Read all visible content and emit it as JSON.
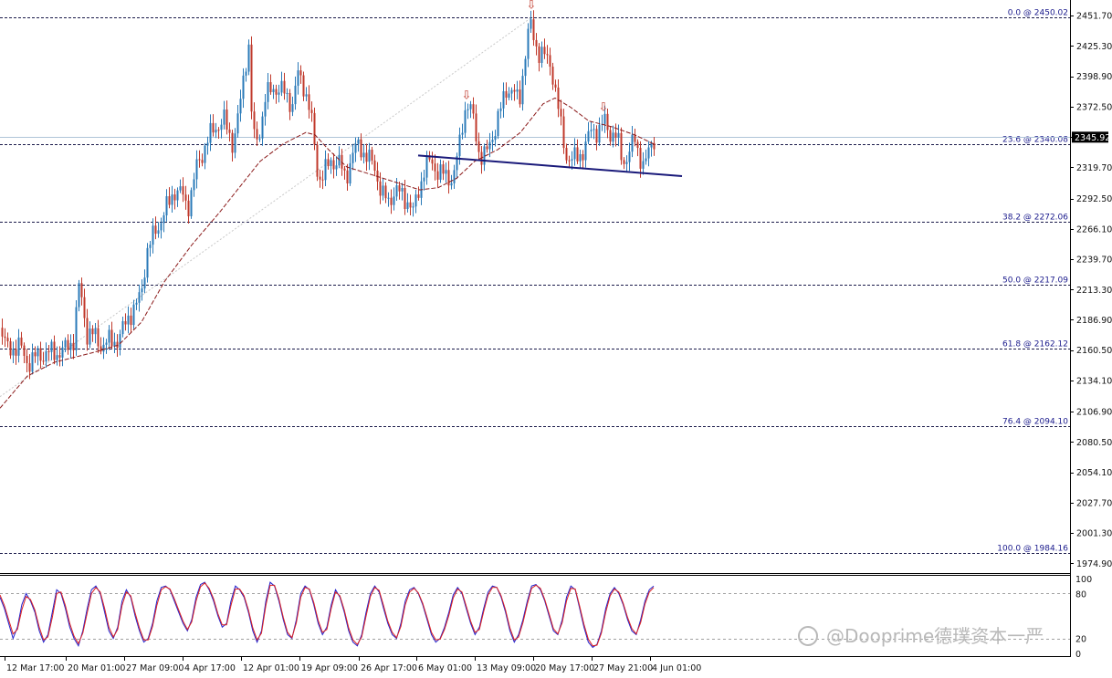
{
  "colors": {
    "up_candle": "#2a7ab8",
    "down_candle": "#c0392b",
    "moving_average": "#8b1a1a",
    "neckline": "#1a1a7a",
    "fib_line": "#1a1a4a",
    "stoch_main": "#2222cc",
    "stoch_signal": "#dd2222",
    "arrow_marker": "#c0392b",
    "current_price_bg": "#000000"
  },
  "chart_data": [
    {
      "type": "candlestick",
      "title": "",
      "y_ticks": [
        "2451.70",
        "2425.30",
        "2398.90",
        "2372.50",
        "2345.92",
        "2319.70",
        "2292.50",
        "2266.10",
        "2239.70",
        "2213.30",
        "2186.90",
        "2160.50",
        "2134.10",
        "2106.90",
        "2080.50",
        "2054.10",
        "2027.70",
        "2001.30",
        "1974.90"
      ],
      "ylim": [
        1968,
        2459
      ],
      "x_ticks": [
        "12 Mar 17:00",
        "20 Mar 01:00",
        "27 Mar 09:00",
        "4 Apr 17:00",
        "12 Apr 01:00",
        "19 Apr 09:00",
        "26 Apr 17:00",
        "6 May 01:00",
        "13 May 09:00",
        "20 May 17:00",
        "27 May 21:00",
        "4 Jun 01:00"
      ],
      "current_price": "2345.92",
      "fibonacci_levels": [
        {
          "label": "0.0 @ 2450.02",
          "price": 2450.02
        },
        {
          "label": "23.6 @ 2340.08",
          "price": 2340.08
        },
        {
          "label": "38.2 @ 2272.06",
          "price": 2272.06
        },
        {
          "label": "50.0 @ 2217.09",
          "price": 2217.09
        },
        {
          "label": "61.8 @ 2162.12",
          "price": 2162.12
        },
        {
          "label": "76.4 @ 2094.10",
          "price": 2094.1
        },
        {
          "label": "100.0 @ 1984.16",
          "price": 1984.16
        }
      ],
      "close_anchors": [
        [
          0,
          2180
        ],
        [
          8,
          2160
        ],
        [
          20,
          2165
        ],
        [
          26,
          2155
        ],
        [
          30,
          2150
        ],
        [
          40,
          2155
        ],
        [
          50,
          2158
        ],
        [
          60,
          2158
        ],
        [
          70,
          2160
        ],
        [
          80,
          2170
        ],
        [
          86,
          2215
        ],
        [
          90,
          2200
        ],
        [
          95,
          2175
        ],
        [
          100,
          2175
        ],
        [
          110,
          2165
        ],
        [
          120,
          2168
        ],
        [
          130,
          2170
        ],
        [
          140,
          2190
        ],
        [
          150,
          2200
        ],
        [
          155,
          2215
        ],
        [
          160,
          2245
        ],
        [
          170,
          2265
        ],
        [
          180,
          2280
        ],
        [
          190,
          2300
        ],
        [
          200,
          2295
        ],
        [
          205,
          2285
        ],
        [
          210,
          2300
        ],
        [
          215,
          2320
        ],
        [
          225,
          2340
        ],
        [
          235,
          2355
        ],
        [
          245,
          2360
        ],
        [
          255,
          2340
        ],
        [
          262,
          2370
        ],
        [
          268,
          2410
        ],
        [
          272,
          2425
        ],
        [
          276,
          2350
        ],
        [
          280,
          2340
        ],
        [
          285,
          2355
        ],
        [
          290,
          2380
        ],
        [
          300,
          2390
        ],
        [
          310,
          2385
        ],
        [
          320,
          2375
        ],
        [
          326,
          2400
        ],
        [
          333,
          2390
        ],
        [
          340,
          2365
        ],
        [
          348,
          2310
        ],
        [
          355,
          2315
        ],
        [
          362,
          2325
        ],
        [
          370,
          2325
        ],
        [
          378,
          2310
        ],
        [
          385,
          2330
        ],
        [
          393,
          2340
        ],
        [
          400,
          2330
        ],
        [
          410,
          2320
        ],
        [
          418,
          2295
        ],
        [
          425,
          2290
        ],
        [
          432,
          2300
        ],
        [
          440,
          2295
        ],
        [
          447,
          2290
        ],
        [
          452,
          2280
        ],
        [
          458,
          2300
        ],
        [
          465,
          2320
        ],
        [
          472,
          2325
        ],
        [
          480,
          2315
        ],
        [
          488,
          2312
        ],
        [
          496,
          2310
        ],
        [
          503,
          2340
        ],
        [
          508,
          2370
        ],
        [
          513,
          2375
        ],
        [
          518,
          2360
        ],
        [
          525,
          2330
        ],
        [
          532,
          2330
        ],
        [
          540,
          2350
        ],
        [
          548,
          2370
        ],
        [
          555,
          2390
        ],
        [
          562,
          2385
        ],
        [
          568,
          2375
        ],
        [
          575,
          2420
        ],
        [
          580,
          2445
        ],
        [
          585,
          2430
        ],
        [
          590,
          2420
        ],
        [
          597,
          2415
        ],
        [
          603,
          2410
        ],
        [
          608,
          2385
        ],
        [
          614,
          2355
        ],
        [
          620,
          2330
        ],
        [
          626,
          2325
        ],
        [
          632,
          2330
        ],
        [
          640,
          2335
        ],
        [
          648,
          2355
        ],
        [
          655,
          2350
        ],
        [
          662,
          2360
        ],
        [
          668,
          2350
        ],
        [
          675,
          2345
        ],
        [
          682,
          2325
        ],
        [
          688,
          2330
        ],
        [
          695,
          2345
        ],
        [
          702,
          2325
        ],
        [
          706,
          2318
        ],
        [
          710,
          2335
        ],
        [
          716,
          2346
        ]
      ],
      "moving_average_anchors": [
        [
          0,
          2110
        ],
        [
          30,
          2138
        ],
        [
          60,
          2150
        ],
        [
          100,
          2158
        ],
        [
          130,
          2165
        ],
        [
          155,
          2185
        ],
        [
          180,
          2220
        ],
        [
          210,
          2252
        ],
        [
          240,
          2280
        ],
        [
          265,
          2305
        ],
        [
          285,
          2325
        ],
        [
          310,
          2340
        ],
        [
          335,
          2350
        ],
        [
          345,
          2348
        ],
        [
          360,
          2335
        ],
        [
          380,
          2320
        ],
        [
          400,
          2315
        ],
        [
          420,
          2310
        ],
        [
          440,
          2305
        ],
        [
          460,
          2300
        ],
        [
          480,
          2302
        ],
        [
          500,
          2310
        ],
        [
          520,
          2325
        ],
        [
          545,
          2335
        ],
        [
          570,
          2350
        ],
        [
          595,
          2375
        ],
        [
          608,
          2380
        ],
        [
          625,
          2372
        ],
        [
          645,
          2360
        ],
        [
          670,
          2355
        ],
        [
          695,
          2348
        ],
        [
          716,
          2340
        ]
      ],
      "neckline": {
        "start": [
          458,
          2330
        ],
        "end": [
          747,
          2312
        ]
      },
      "markers": [
        {
          "symbol": "⇩",
          "x": 511,
          "price": 2379
        },
        {
          "symbol": "⇩",
          "x": 582,
          "price": 2458
        },
        {
          "symbol": "⇩",
          "x": 661,
          "price": 2369
        }
      ]
    },
    {
      "type": "stochastic_oscillator",
      "y_ticks": [
        "100",
        "80",
        "20",
        "0"
      ],
      "ylim": [
        0,
        100
      ],
      "levels": [
        80,
        20
      ],
      "series": [
        {
          "role": "main",
          "values": [
            75,
            60,
            40,
            20,
            35,
            65,
            80,
            70,
            55,
            30,
            15,
            25,
            55,
            85,
            80,
            60,
            35,
            20,
            10,
            30,
            60,
            85,
            90,
            80,
            55,
            30,
            20,
            35,
            70,
            85,
            75,
            50,
            30,
            15,
            20,
            40,
            70,
            88,
            90,
            85,
            70,
            55,
            40,
            30,
            45,
            75,
            92,
            95,
            85,
            70,
            50,
            35,
            40,
            70,
            90,
            85,
            75,
            55,
            30,
            15,
            30,
            70,
            95,
            90,
            70,
            45,
            25,
            20,
            45,
            80,
            90,
            85,
            65,
            40,
            25,
            35,
            65,
            85,
            75,
            55,
            30,
            15,
            10,
            25,
            55,
            80,
            90,
            82,
            60,
            40,
            25,
            20,
            40,
            70,
            85,
            88,
            80,
            65,
            45,
            25,
            15,
            20,
            35,
            55,
            78,
            88,
            80,
            60,
            40,
            25,
            35,
            60,
            82,
            90,
            88,
            75,
            55,
            30,
            15,
            25,
            45,
            70,
            90,
            92,
            85,
            70,
            50,
            30,
            25,
            45,
            75,
            90,
            85,
            60,
            35,
            15,
            8,
            12,
            30,
            60,
            80,
            88,
            80,
            65,
            45,
            30,
            25,
            45,
            70,
            85,
            90
          ]
        },
        {
          "role": "signal",
          "values": [
            78,
            64,
            45,
            26,
            32,
            58,
            76,
            72,
            58,
            35,
            18,
            22,
            48,
            80,
            82,
            64,
            40,
            23,
            13,
            27,
            54,
            80,
            88,
            82,
            60,
            35,
            22,
            32,
            64,
            82,
            77,
            54,
            34,
            18,
            18,
            36,
            64,
            85,
            89,
            86,
            73,
            58,
            43,
            32,
            42,
            70,
            89,
            94,
            87,
            73,
            53,
            38,
            38,
            64,
            86,
            86,
            77,
            58,
            34,
            18,
            27,
            64,
            91,
            91,
            73,
            48,
            28,
            21,
            41,
            75,
            88,
            86,
            68,
            44,
            28,
            32,
            60,
            82,
            77,
            58,
            34,
            18,
            12,
            22,
            50,
            76,
            88,
            84,
            64,
            43,
            28,
            21,
            36,
            65,
            82,
            87,
            81,
            67,
            48,
            28,
            18,
            19,
            32,
            51,
            74,
            86,
            82,
            63,
            43,
            28,
            32,
            56,
            78,
            88,
            88,
            77,
            58,
            34,
            18,
            22,
            41,
            66,
            87,
            91,
            87,
            72,
            53,
            33,
            26,
            41,
            70,
            87,
            86,
            63,
            39,
            19,
            10,
            11,
            27,
            55,
            77,
            86,
            82,
            67,
            48,
            33,
            26,
            41,
            66,
            82,
            88
          ]
        }
      ]
    }
  ],
  "watermark": "@Dooprime德璞资本一严"
}
